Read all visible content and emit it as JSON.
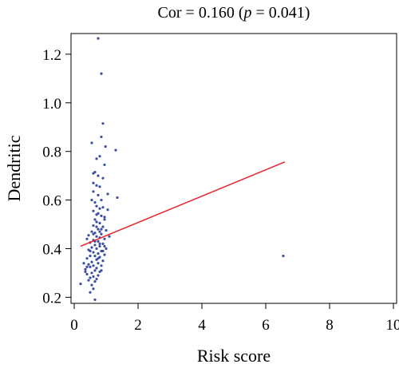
{
  "chart_data": {
    "type": "scatter",
    "title_prefix": "Cor = 0.160 (",
    "title_p": "p",
    "title_suffix": " = 0.041)",
    "xlabel": "Risk score",
    "ylabel": "Dendritic",
    "xlim": [
      -0.1,
      10.1
    ],
    "ylim": [
      0.175,
      1.285
    ],
    "x_ticks": [
      0,
      2,
      4,
      6,
      8,
      10
    ],
    "y_ticks": [
      0.2,
      0.4,
      0.6,
      0.8,
      1.0,
      1.2
    ],
    "x_tick_labels": [
      "0",
      "2",
      "4",
      "6",
      "8",
      "10"
    ],
    "y_tick_labels": [
      "0.2",
      "0.4",
      "0.6",
      "0.8",
      "1.0",
      "1.2"
    ],
    "grid": false,
    "colors": {
      "points": "#3b4fa0",
      "fit_line": "#e8252b",
      "axis": "#000000"
    },
    "fit_line": {
      "x": [
        0.2,
        6.6
      ],
      "y": [
        0.41,
        0.757
      ]
    },
    "points": [
      {
        "x": 0.75,
        "y": 1.265
      },
      {
        "x": 0.85,
        "y": 1.12
      },
      {
        "x": 0.9,
        "y": 0.915
      },
      {
        "x": 0.98,
        "y": 0.82
      },
      {
        "x": 1.3,
        "y": 0.805
      },
      {
        "x": 0.55,
        "y": 0.835
      },
      {
        "x": 0.85,
        "y": 0.86
      },
      {
        "x": 0.8,
        "y": 0.78
      },
      {
        "x": 0.7,
        "y": 0.77
      },
      {
        "x": 0.95,
        "y": 0.745
      },
      {
        "x": 0.6,
        "y": 0.71
      },
      {
        "x": 0.65,
        "y": 0.715
      },
      {
        "x": 0.75,
        "y": 0.7
      },
      {
        "x": 0.9,
        "y": 0.69
      },
      {
        "x": 0.7,
        "y": 0.66
      },
      {
        "x": 0.8,
        "y": 0.655
      },
      {
        "x": 1.05,
        "y": 0.625
      },
      {
        "x": 1.35,
        "y": 0.61
      },
      {
        "x": 0.6,
        "y": 0.635
      },
      {
        "x": 0.75,
        "y": 0.62
      },
      {
        "x": 0.85,
        "y": 0.6
      },
      {
        "x": 0.65,
        "y": 0.59
      },
      {
        "x": 0.7,
        "y": 0.575
      },
      {
        "x": 0.8,
        "y": 0.565
      },
      {
        "x": 0.9,
        "y": 0.57
      },
      {
        "x": 0.6,
        "y": 0.555
      },
      {
        "x": 0.75,
        "y": 0.545
      },
      {
        "x": 0.85,
        "y": 0.535
      },
      {
        "x": 0.65,
        "y": 0.52
      },
      {
        "x": 0.95,
        "y": 0.52
      },
      {
        "x": 0.7,
        "y": 0.51
      },
      {
        "x": 0.8,
        "y": 0.505
      },
      {
        "x": 0.6,
        "y": 0.495
      },
      {
        "x": 0.9,
        "y": 0.49
      },
      {
        "x": 0.75,
        "y": 0.48
      },
      {
        "x": 1.0,
        "y": 0.475
      },
      {
        "x": 0.55,
        "y": 0.47
      },
      {
        "x": 0.65,
        "y": 0.465
      },
      {
        "x": 0.85,
        "y": 0.46
      },
      {
        "x": 0.45,
        "y": 0.455
      },
      {
        "x": 0.7,
        "y": 0.45
      },
      {
        "x": 0.8,
        "y": 0.445
      },
      {
        "x": 0.95,
        "y": 0.44
      },
      {
        "x": 0.6,
        "y": 0.435
      },
      {
        "x": 0.75,
        "y": 0.43
      },
      {
        "x": 0.5,
        "y": 0.425
      },
      {
        "x": 0.9,
        "y": 0.42
      },
      {
        "x": 0.65,
        "y": 0.415
      },
      {
        "x": 0.8,
        "y": 0.41
      },
      {
        "x": 0.55,
        "y": 0.405
      },
      {
        "x": 1.0,
        "y": 0.4
      },
      {
        "x": 0.7,
        "y": 0.4
      },
      {
        "x": 0.45,
        "y": 0.395
      },
      {
        "x": 0.85,
        "y": 0.39
      },
      {
        "x": 0.6,
        "y": 0.385
      },
      {
        "x": 0.75,
        "y": 0.38
      },
      {
        "x": 0.95,
        "y": 0.375
      },
      {
        "x": 0.5,
        "y": 0.37
      },
      {
        "x": 0.65,
        "y": 0.37
      },
      {
        "x": 0.8,
        "y": 0.365
      },
      {
        "x": 0.4,
        "y": 0.36
      },
      {
        "x": 0.7,
        "y": 0.355
      },
      {
        "x": 0.9,
        "y": 0.35
      },
      {
        "x": 0.55,
        "y": 0.345
      },
      {
        "x": 0.75,
        "y": 0.34
      },
      {
        "x": 0.45,
        "y": 0.335
      },
      {
        "x": 0.6,
        "y": 0.33
      },
      {
        "x": 0.85,
        "y": 0.33
      },
      {
        "x": 0.5,
        "y": 0.325
      },
      {
        "x": 0.7,
        "y": 0.32
      },
      {
        "x": 0.35,
        "y": 0.315
      },
      {
        "x": 0.65,
        "y": 0.31
      },
      {
        "x": 0.8,
        "y": 0.305
      },
      {
        "x": 0.55,
        "y": 0.3
      },
      {
        "x": 0.4,
        "y": 0.295
      },
      {
        "x": 0.75,
        "y": 0.29
      },
      {
        "x": 0.6,
        "y": 0.285
      },
      {
        "x": 0.5,
        "y": 0.28
      },
      {
        "x": 0.7,
        "y": 0.275
      },
      {
        "x": 0.45,
        "y": 0.27
      },
      {
        "x": 0.65,
        "y": 0.265
      },
      {
        "x": 0.2,
        "y": 0.255
      },
      {
        "x": 0.55,
        "y": 0.25
      },
      {
        "x": 0.6,
        "y": 0.235
      },
      {
        "x": 0.5,
        "y": 0.22
      },
      {
        "x": 0.65,
        "y": 0.19
      },
      {
        "x": 0.35,
        "y": 0.305
      },
      {
        "x": 0.4,
        "y": 0.325
      },
      {
        "x": 0.3,
        "y": 0.34
      },
      {
        "x": 0.85,
        "y": 0.48
      },
      {
        "x": 0.95,
        "y": 0.53
      },
      {
        "x": 1.05,
        "y": 0.56
      },
      {
        "x": 0.55,
        "y": 0.6
      },
      {
        "x": 0.6,
        "y": 0.67
      },
      {
        "x": 0.7,
        "y": 0.54
      },
      {
        "x": 0.8,
        "y": 0.42
      },
      {
        "x": 0.9,
        "y": 0.39
      },
      {
        "x": 0.5,
        "y": 0.39
      },
      {
        "x": 0.75,
        "y": 0.36
      },
      {
        "x": 0.85,
        "y": 0.31
      },
      {
        "x": 0.65,
        "y": 0.43
      },
      {
        "x": 0.95,
        "y": 0.41
      },
      {
        "x": 0.4,
        "y": 0.44
      },
      {
        "x": 1.1,
        "y": 0.45
      },
      {
        "x": 0.8,
        "y": 0.47
      },
      {
        "x": 0.7,
        "y": 0.49
      },
      {
        "x": 0.6,
        "y": 0.46
      },
      {
        "x": 6.55,
        "y": 0.37
      }
    ]
  }
}
